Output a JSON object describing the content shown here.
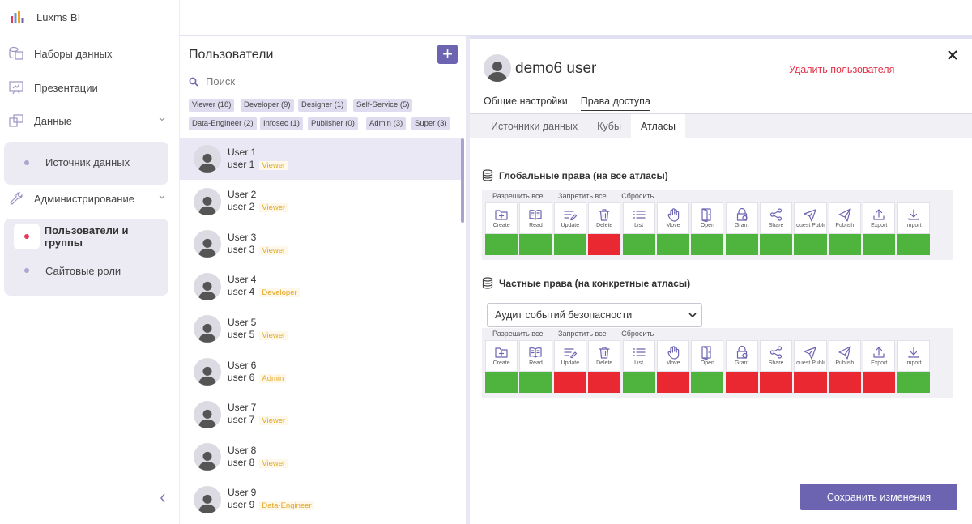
{
  "app": {
    "name": "Luxms BI"
  },
  "sidebar": {
    "items": [
      {
        "label": "Наборы данных",
        "icon": "datasets-icon"
      },
      {
        "label": "Презентации",
        "icon": "presentation-icon"
      },
      {
        "label": "Данные",
        "icon": "data-icon"
      },
      {
        "label": "Администрирование",
        "icon": "wrench-icon"
      }
    ],
    "data_sub": [
      {
        "label": "Источник данных"
      }
    ],
    "admin_sub": [
      {
        "label": "Пользователи и группы",
        "active": true
      },
      {
        "label": "Сайтовые роли"
      }
    ]
  },
  "users_panel": {
    "title": "Пользователи",
    "search_placeholder": "Поиск",
    "chips": [
      "Viewer (18)",
      "Developer (9)",
      "Designer (1)",
      "Self-Service (5)",
      "Data-Engineer (2)",
      "Infosec (1)",
      "Publisher (0)",
      "Admin (3)",
      "Super (3)"
    ],
    "users": [
      {
        "name": "User 1",
        "login": "user 1",
        "role": "Viewer",
        "selected": true
      },
      {
        "name": "User 2",
        "login": "user 2",
        "role": "Viewer"
      },
      {
        "name": "User 3",
        "login": "user 3",
        "role": "Viewer"
      },
      {
        "name": "User 4",
        "login": "user 4",
        "role": "Developer"
      },
      {
        "name": "User 5",
        "login": "user 5",
        "role": "Viewer"
      },
      {
        "name": "User 6",
        "login": "user 6",
        "role": "Admin"
      },
      {
        "name": "User 7",
        "login": "user 7",
        "role": "Viewer"
      },
      {
        "name": "User 8",
        "login": "user 8",
        "role": "Viewer"
      },
      {
        "name": "User 9",
        "login": "user 9",
        "role": "Data-Engineer"
      }
    ]
  },
  "details": {
    "user_name": "demo6 user",
    "delete_label": "Удалить пользователя",
    "tabs": [
      "Общие настройки",
      "Права доступа"
    ],
    "active_tab": 1,
    "subtabs": [
      "Источники данных",
      "Кубы",
      "Атласы"
    ],
    "active_subtab": 2,
    "global": {
      "title": "Глобальные права (на все атласы)",
      "actions": [
        "Разрешить все",
        "Запретить все",
        "Сбросить"
      ],
      "statuses": [
        "green",
        "green",
        "green",
        "red",
        "green",
        "green",
        "green",
        "green",
        "green",
        "green",
        "green",
        "green",
        "green"
      ]
    },
    "specific": {
      "title": "Частные права (на конкретные атласы)",
      "selected_atlas": "Аудит событий безопасности",
      "actions": [
        "Разрешить все",
        "Запретить все",
        "Сбросить"
      ],
      "statuses": [
        "green",
        "green",
        "red",
        "red",
        "green",
        "red",
        "green",
        "red",
        "red",
        "red",
        "red",
        "red",
        "green"
      ]
    },
    "permissions": [
      {
        "label": "Create",
        "icon": "create-folder-icon"
      },
      {
        "label": "Read",
        "icon": "book-icon"
      },
      {
        "label": "Update",
        "icon": "edit-list-icon"
      },
      {
        "label": "Delete",
        "icon": "trash-icon"
      },
      {
        "label": "List",
        "icon": "list-icon"
      },
      {
        "label": "Move",
        "icon": "hand-icon"
      },
      {
        "label": "Open",
        "icon": "open-door-icon"
      },
      {
        "label": "Grant",
        "icon": "lock-icon"
      },
      {
        "label": "Share",
        "icon": "share-icon"
      },
      {
        "label": "quest Publi",
        "icon": "paper-plane-outline-icon"
      },
      {
        "label": "Publish",
        "icon": "send-icon"
      },
      {
        "label": "Export",
        "icon": "upload-icon"
      },
      {
        "label": "Import",
        "icon": "download-icon"
      }
    ],
    "save_label": "Сохранить изменения"
  },
  "colors": {
    "accent": "#6c64b0",
    "allow": "#4fb43d",
    "deny": "#ea2832",
    "danger": "#e8324a",
    "role": "#e4a626"
  }
}
